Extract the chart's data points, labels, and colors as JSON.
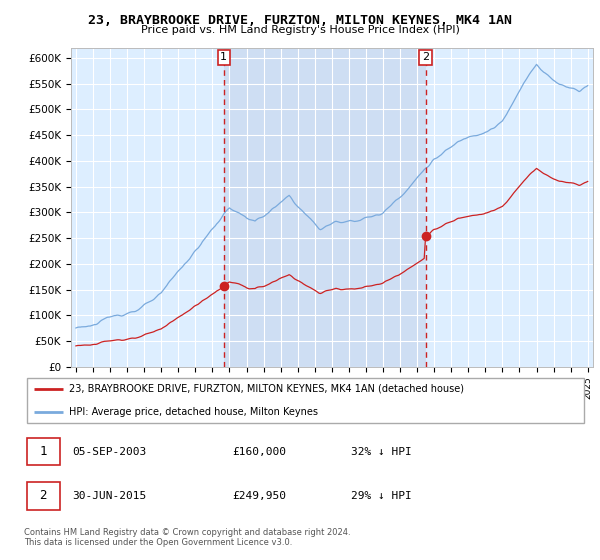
{
  "title": "23, BRAYBROOKE DRIVE, FURZTON, MILTON KEYNES, MK4 1AN",
  "subtitle": "Price paid vs. HM Land Registry's House Price Index (HPI)",
  "legend_line1": "23, BRAYBROOKE DRIVE, FURZTON, MILTON KEYNES, MK4 1AN (detached house)",
  "legend_line2": "HPI: Average price, detached house, Milton Keynes",
  "annotation1_date": "05-SEP-2003",
  "annotation1_price": "£160,000",
  "annotation1_hpi": "32% ↓ HPI",
  "annotation2_date": "30-JUN-2015",
  "annotation2_price": "£249,950",
  "annotation2_hpi": "29% ↓ HPI",
  "footer": "Contains HM Land Registry data © Crown copyright and database right 2024.\nThis data is licensed under the Open Government Licence v3.0.",
  "hpi_color": "#7aaadd",
  "price_color": "#cc2222",
  "vline_color": "#cc2222",
  "marker_color": "#cc2222",
  "background_plot": "#ddeeff",
  "ylim": [
    0,
    620000
  ],
  "yticks": [
    0,
    50000,
    100000,
    150000,
    200000,
    250000,
    300000,
    350000,
    400000,
    450000,
    500000,
    550000,
    600000
  ],
  "xlabel_start_year": 1995,
  "xlabel_end_year": 2025,
  "sale1_year": 2003.67,
  "sale2_year": 2015.5,
  "sale1_price": 160000,
  "sale2_price": 249950,
  "xlim_left": 1994.7,
  "xlim_right": 2025.3
}
